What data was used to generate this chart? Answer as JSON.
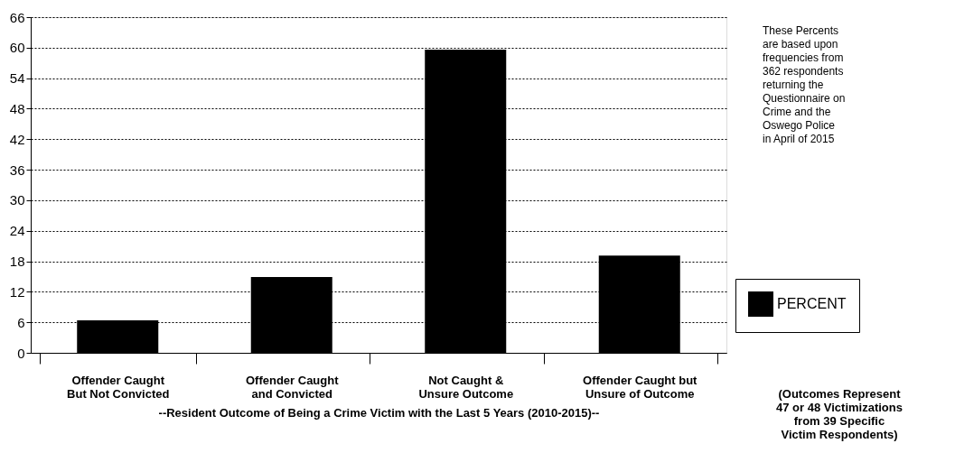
{
  "chart_data": {
    "type": "bar",
    "categories": [
      "Offender Caught\nBut Not Convicted",
      "Offender Caught\nand Convicted",
      "Not Caught &\nUnsure Outcome",
      "Offender Caught but\nUnsure of Outcome"
    ],
    "series": [
      {
        "name": "PERCENT",
        "color": "#000000",
        "values": [
          6.4,
          14.9,
          59.6,
          19.1
        ]
      }
    ],
    "xlabel": "--Resident Outcome of Being a Crime Victim with the Last 5 Years (2010-2015)--",
    "annotations": [
      "These Percents\nare based upon\nfrequencies from\n362 respondents\nreturning the\nQuestionnaire on\nCrime and the\nOswego Police\nin April of 2015",
      "(Outcomes Represent\n47 or 48 Victimizations\nfrom 39 Specific\nVictim Respondents)"
    ],
    "ylim": [
      0,
      66
    ],
    "yticks": [
      0,
      6,
      12,
      18,
      24,
      30,
      36,
      42,
      48,
      54,
      60,
      66
    ],
    "grid": "y",
    "legend": "right"
  }
}
